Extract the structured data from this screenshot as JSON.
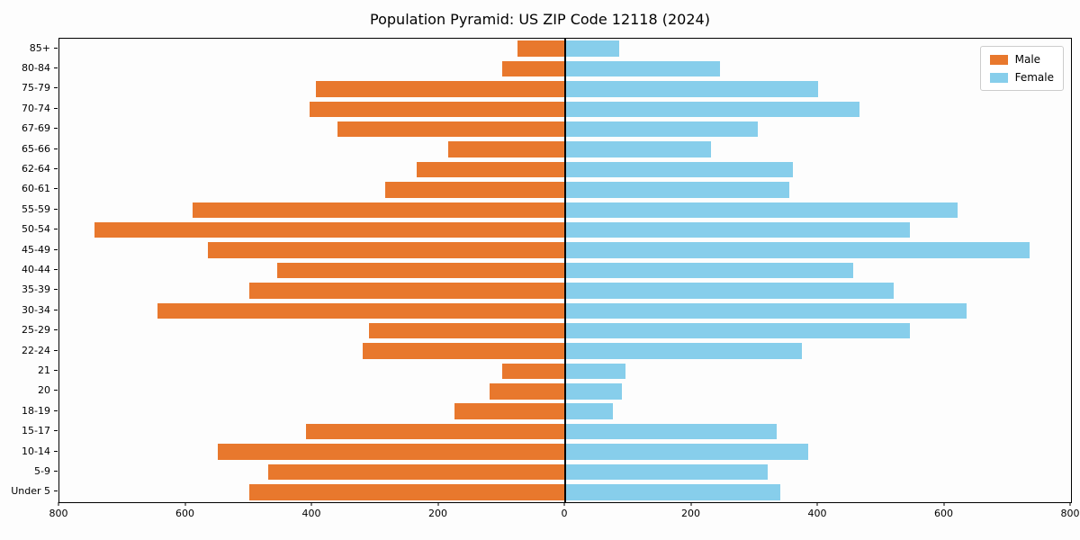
{
  "title": "Population Pyramid: US ZIP Code 12118 (2024)",
  "chart_data": {
    "type": "bar",
    "orientation": "horizontal-pyramid",
    "title": "Population Pyramid: US ZIP Code 12118 (2024)",
    "categories": [
      "85+",
      "80-84",
      "75-79",
      "70-74",
      "67-69",
      "65-66",
      "62-64",
      "60-61",
      "55-59",
      "50-54",
      "45-49",
      "40-44",
      "35-39",
      "30-34",
      "25-29",
      "22-24",
      "21",
      "20",
      "18-19",
      "15-17",
      "10-14",
      "5-9",
      "Under 5"
    ],
    "series": [
      {
        "name": "Male",
        "color": "#e8782d",
        "direction": "left",
        "values": [
          75,
          100,
          395,
          405,
          360,
          185,
          235,
          285,
          590,
          745,
          565,
          455,
          500,
          645,
          310,
          320,
          100,
          120,
          175,
          410,
          550,
          470,
          500
        ]
      },
      {
        "name": "Female",
        "color": "#87ceeb",
        "direction": "right",
        "values": [
          85,
          245,
          400,
          465,
          305,
          230,
          360,
          355,
          620,
          545,
          735,
          455,
          520,
          635,
          545,
          375,
          95,
          90,
          75,
          335,
          385,
          320,
          340
        ]
      }
    ],
    "xlim": [
      -800,
      800
    ],
    "x_ticks": [
      -800,
      -600,
      -400,
      -200,
      0,
      200,
      400,
      600,
      800
    ],
    "x_tick_labels": [
      "800",
      "600",
      "400",
      "200",
      "0",
      "200",
      "400",
      "600",
      "800"
    ],
    "legend_position": "upper right",
    "grid": false
  }
}
